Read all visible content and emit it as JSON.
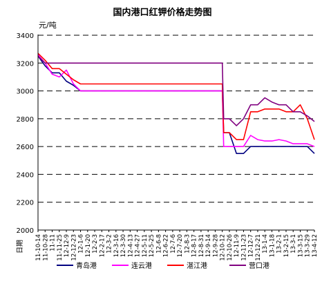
{
  "chart_data": {
    "type": "line",
    "title": "国内港口红钾价格走势图",
    "ylabel": "元/吨",
    "xlabel": "日期",
    "ylim": [
      2000,
      3400
    ],
    "yticks": [
      2000,
      2200,
      2400,
      2600,
      2800,
      3000,
      3200,
      3400
    ],
    "grid": "dashed horizontal",
    "legend_position": "bottom",
    "x_tick_labels": [
      "11-10-14",
      "11-10-28",
      "11-11",
      "11-11-25",
      "12-12-9",
      "12-12-23",
      "12-1-6",
      "12-1-20",
      "12-2-3",
      "12-2-17",
      "12-3-2",
      "12-3-16",
      "12-3-30",
      "12-4-13",
      "12-4-27",
      "12-5-11",
      "12-5-25",
      "12-6-8",
      "12-6-22",
      "12-7-6",
      "12-7-20",
      "12-8-3",
      "12-8-17",
      "12-8-31",
      "12-9-14",
      "12-9-28",
      "12-10-12",
      "12-10-26",
      "12-11-9",
      "12-11-23",
      "12-12-7",
      "12-12-21",
      "13-1-4",
      "13-1-18",
      "13-2-1",
      "13-2-15",
      "13-3-1",
      "13-3-15",
      "13-3-29",
      "13-4-12"
    ],
    "series": [
      {
        "name": "青岛港",
        "color": "#000080",
        "points": [
          [
            0,
            3250
          ],
          [
            1,
            3180
          ],
          [
            2,
            3130
          ],
          [
            3,
            3130
          ],
          [
            4,
            3070
          ],
          [
            5,
            3040
          ],
          [
            6,
            3000
          ],
          [
            7,
            3000
          ],
          [
            8,
            3000
          ],
          [
            9,
            3000
          ],
          [
            10,
            3000
          ],
          [
            11,
            3000
          ],
          [
            12,
            3000
          ],
          [
            13,
            3000
          ],
          [
            14,
            3000
          ],
          [
            15,
            3000
          ],
          [
            16,
            3000
          ],
          [
            17,
            3000
          ],
          [
            18,
            3000
          ],
          [
            19,
            3000
          ],
          [
            20,
            3000
          ],
          [
            21,
            3000
          ],
          [
            22,
            3000
          ],
          [
            23,
            3000
          ],
          [
            24,
            3000
          ],
          [
            25,
            3000
          ],
          [
            26,
            3000
          ],
          [
            26.2,
            2700
          ],
          [
            27,
            2700
          ],
          [
            28,
            2550
          ],
          [
            29,
            2550
          ],
          [
            30,
            2600
          ],
          [
            31,
            2600
          ],
          [
            32,
            2600
          ],
          [
            33,
            2600
          ],
          [
            34,
            2600
          ],
          [
            35,
            2600
          ],
          [
            36,
            2600
          ],
          [
            37,
            2600
          ],
          [
            38,
            2600
          ],
          [
            39,
            2550
          ]
        ]
      },
      {
        "name": "连云港",
        "color": "#ff00ff",
        "points": [
          [
            0,
            3260
          ],
          [
            1,
            3200
          ],
          [
            2,
            3120
          ],
          [
            3,
            3100
          ],
          [
            4,
            3150
          ],
          [
            5,
            3050
          ],
          [
            6,
            3000
          ],
          [
            7,
            3000
          ],
          [
            8,
            3000
          ],
          [
            9,
            3000
          ],
          [
            10,
            3000
          ],
          [
            11,
            3000
          ],
          [
            12,
            3000
          ],
          [
            13,
            3000
          ],
          [
            14,
            3000
          ],
          [
            15,
            3000
          ],
          [
            16,
            3000
          ],
          [
            17,
            3000
          ],
          [
            18,
            3000
          ],
          [
            19,
            3000
          ],
          [
            20,
            3000
          ],
          [
            21,
            3000
          ],
          [
            22,
            3000
          ],
          [
            23,
            3000
          ],
          [
            24,
            3000
          ],
          [
            25,
            3000
          ],
          [
            26,
            3000
          ],
          [
            26.2,
            2600
          ],
          [
            27,
            2600
          ],
          [
            28,
            2600
          ],
          [
            29,
            2600
          ],
          [
            30,
            2680
          ],
          [
            31,
            2650
          ],
          [
            32,
            2640
          ],
          [
            33,
            2640
          ],
          [
            34,
            2650
          ],
          [
            35,
            2640
          ],
          [
            36,
            2620
          ],
          [
            37,
            2620
          ],
          [
            38,
            2620
          ],
          [
            39,
            2600
          ]
        ]
      },
      {
        "name": "湛江港",
        "color": "#ff0000",
        "points": [
          [
            0,
            3270
          ],
          [
            1,
            3220
          ],
          [
            2,
            3160
          ],
          [
            3,
            3160
          ],
          [
            4,
            3120
          ],
          [
            5,
            3080
          ],
          [
            6,
            3050
          ],
          [
            7,
            3050
          ],
          [
            8,
            3050
          ],
          [
            9,
            3050
          ],
          [
            10,
            3050
          ],
          [
            11,
            3050
          ],
          [
            12,
            3050
          ],
          [
            13,
            3050
          ],
          [
            14,
            3050
          ],
          [
            15,
            3050
          ],
          [
            16,
            3050
          ],
          [
            17,
            3050
          ],
          [
            18,
            3050
          ],
          [
            19,
            3050
          ],
          [
            20,
            3050
          ],
          [
            21,
            3050
          ],
          [
            22,
            3050
          ],
          [
            23,
            3050
          ],
          [
            24,
            3050
          ],
          [
            25,
            3050
          ],
          [
            26,
            3050
          ],
          [
            26.2,
            2700
          ],
          [
            27,
            2700
          ],
          [
            28,
            2650
          ],
          [
            29,
            2650
          ],
          [
            30,
            2850
          ],
          [
            31,
            2850
          ],
          [
            32,
            2870
          ],
          [
            33,
            2870
          ],
          [
            34,
            2870
          ],
          [
            35,
            2850
          ],
          [
            36,
            2850
          ],
          [
            37,
            2900
          ],
          [
            38,
            2800
          ],
          [
            39,
            2650
          ]
        ]
      },
      {
        "name": "营口港",
        "color": "#800080",
        "points": [
          [
            0,
            3250
          ],
          [
            1,
            3200
          ],
          [
            2,
            3200
          ],
          [
            3,
            3200
          ],
          [
            4,
            3200
          ],
          [
            5,
            3200
          ],
          [
            6,
            3200
          ],
          [
            7,
            3200
          ],
          [
            8,
            3200
          ],
          [
            9,
            3200
          ],
          [
            10,
            3200
          ],
          [
            11,
            3200
          ],
          [
            12,
            3200
          ],
          [
            13,
            3200
          ],
          [
            14,
            3200
          ],
          [
            15,
            3200
          ],
          [
            16,
            3200
          ],
          [
            17,
            3200
          ],
          [
            18,
            3200
          ],
          [
            19,
            3200
          ],
          [
            20,
            3200
          ],
          [
            21,
            3200
          ],
          [
            22,
            3200
          ],
          [
            23,
            3200
          ],
          [
            24,
            3200
          ],
          [
            25,
            3200
          ],
          [
            26,
            3200
          ],
          [
            26.2,
            2800
          ],
          [
            27,
            2800
          ],
          [
            28,
            2750
          ],
          [
            29,
            2800
          ],
          [
            30,
            2900
          ],
          [
            31,
            2900
          ],
          [
            32,
            2950
          ],
          [
            33,
            2920
          ],
          [
            34,
            2900
          ],
          [
            35,
            2900
          ],
          [
            36,
            2850
          ],
          [
            37,
            2850
          ],
          [
            38,
            2820
          ],
          [
            39,
            2780
          ]
        ]
      }
    ]
  }
}
